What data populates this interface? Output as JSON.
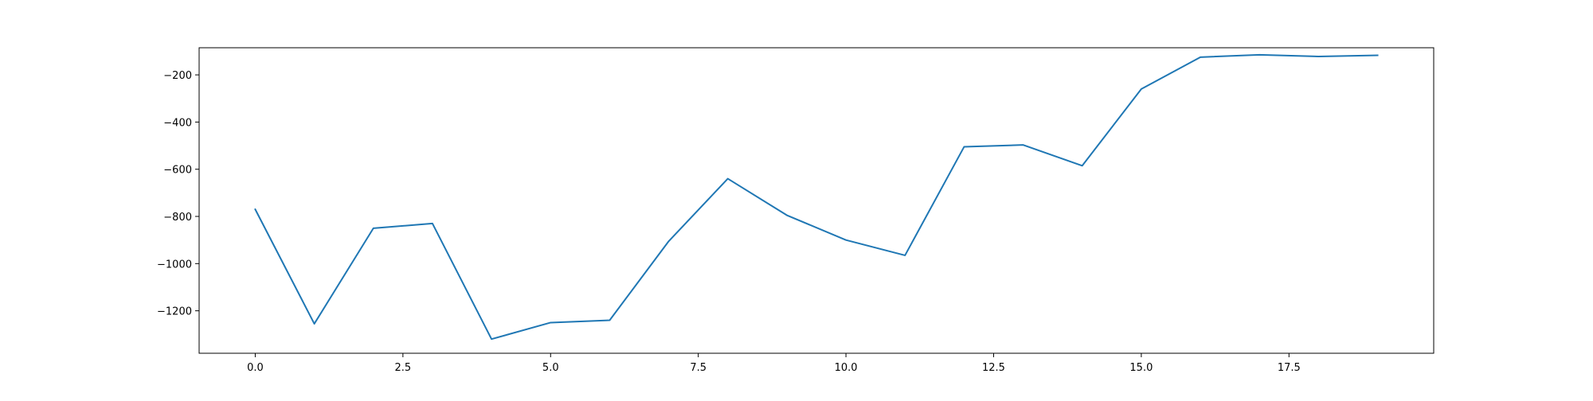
{
  "chart_data": {
    "type": "line",
    "title": "",
    "xlabel": "",
    "ylabel": "",
    "x": [
      0,
      1,
      2,
      3,
      4,
      5,
      6,
      7,
      8,
      9,
      10,
      11,
      12,
      13,
      14,
      15,
      16,
      17,
      18,
      19
    ],
    "series": [
      {
        "color": "#1f77b4",
        "values": [
          -770,
          -1255,
          -850,
          -830,
          -1320,
          -1250,
          -1240,
          -905,
          -640,
          -795,
          -900,
          -965,
          -505,
          -497,
          -585,
          -260,
          -125,
          -115,
          -122,
          -117
        ]
      }
    ],
    "xlim": [
      -0.95,
      19.95
    ],
    "ylim": [
      -1380,
      -85
    ],
    "xticks": [
      0.0,
      2.5,
      5.0,
      7.5,
      10.0,
      12.5,
      15.0,
      17.5
    ],
    "xtick_labels": [
      "0.0",
      "2.5",
      "5.0",
      "7.5",
      "10.0",
      "12.5",
      "15.0",
      "17.5"
    ],
    "yticks": [
      -200,
      -400,
      -600,
      -800,
      -1000,
      -1200
    ],
    "ytick_labels": [
      "−200",
      "−400",
      "−600",
      "−800",
      "−1000",
      "−1200"
    ],
    "grid": false,
    "legend": "none"
  }
}
